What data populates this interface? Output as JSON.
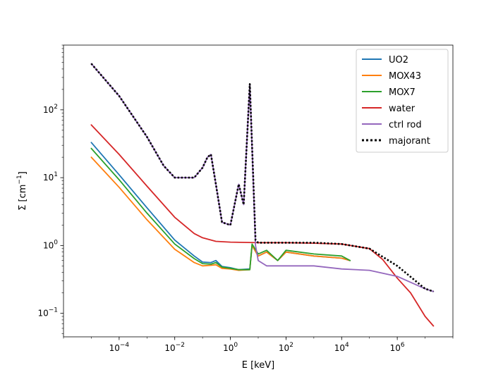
{
  "chart_data": {
    "type": "line",
    "title": "",
    "xlabel": "E [keV]",
    "ylabel_main": "Σ [cm",
    "ylabel_exp": "−1",
    "ylabel_close": "]",
    "xscale": "log",
    "yscale": "log",
    "xlim": [
      1e-06,
      100000000.0
    ],
    "ylim": [
      0.045,
      900
    ],
    "grid": false,
    "legend_position": "top-right",
    "x_ticks": [
      {
        "value": 0.0001,
        "base": "10",
        "exp": "−4"
      },
      {
        "value": 0.01,
        "base": "10",
        "exp": "−2"
      },
      {
        "value": 1,
        "base": "10",
        "exp": "0"
      },
      {
        "value": 100.0,
        "base": "10",
        "exp": "2"
      },
      {
        "value": 10000.0,
        "base": "10",
        "exp": "4"
      },
      {
        "value": 1000000.0,
        "base": "10",
        "exp": "6"
      }
    ],
    "y_ticks": [
      {
        "value": 0.1,
        "base": "10",
        "exp": "−1"
      },
      {
        "value": 1,
        "base": "10",
        "exp": "0"
      },
      {
        "value": 10,
        "base": "10",
        "exp": "1"
      },
      {
        "value": 100,
        "base": "10",
        "exp": "2"
      }
    ],
    "series": [
      {
        "name": "UO2",
        "color": "#1f77b4",
        "style": "solid",
        "x": [
          1e-05,
          0.0001,
          0.001,
          0.01,
          0.05,
          0.1,
          0.2,
          0.3,
          0.5,
          1,
          2,
          5,
          6,
          10,
          20,
          50,
          100,
          1000.0,
          10000.0,
          20000.0
        ],
        "y": [
          33,
          11,
          3.6,
          1.2,
          0.7,
          0.57,
          0.56,
          0.6,
          0.49,
          0.47,
          0.44,
          0.45,
          1.0,
          0.7,
          0.8,
          0.6,
          0.8,
          0.7,
          0.65,
          0.6
        ]
      },
      {
        "name": "MOX43",
        "color": "#ff7f0e",
        "style": "solid",
        "x": [
          1e-05,
          0.0001,
          0.001,
          0.01,
          0.05,
          0.1,
          0.2,
          0.3,
          0.5,
          1,
          2,
          5,
          6,
          10,
          20,
          50,
          100,
          1000.0,
          10000.0,
          20000.0
        ],
        "y": [
          20,
          7.2,
          2.4,
          0.88,
          0.56,
          0.5,
          0.51,
          0.52,
          0.46,
          0.45,
          0.43,
          0.44,
          1.0,
          0.7,
          0.8,
          0.6,
          0.8,
          0.7,
          0.65,
          0.6
        ]
      },
      {
        "name": "MOX7",
        "color": "#2ca02c",
        "style": "solid",
        "x": [
          1e-05,
          0.0001,
          0.001,
          0.01,
          0.05,
          0.1,
          0.2,
          0.3,
          0.5,
          1,
          2,
          5,
          6,
          10,
          20,
          50,
          100,
          1000.0,
          10000.0,
          20000.0
        ],
        "y": [
          27,
          9.3,
          3.0,
          1.05,
          0.64,
          0.54,
          0.53,
          0.56,
          0.48,
          0.46,
          0.44,
          0.44,
          1.05,
          0.75,
          0.85,
          0.6,
          0.85,
          0.75,
          0.7,
          0.6
        ]
      },
      {
        "name": "water",
        "color": "#d62728",
        "style": "solid",
        "x": [
          1e-05,
          0.0001,
          0.001,
          0.01,
          0.05,
          0.1,
          0.3,
          1,
          10,
          100,
          1000.0,
          10000.0,
          100000.0,
          300000.0,
          1000000.0,
          3000000.0,
          10000000.0,
          20000000.0
        ],
        "y": [
          60,
          22,
          7.5,
          2.6,
          1.5,
          1.3,
          1.15,
          1.12,
          1.1,
          1.1,
          1.08,
          1.05,
          0.9,
          0.62,
          0.33,
          0.2,
          0.09,
          0.065
        ]
      },
      {
        "name": "ctrl rod",
        "color": "#9467bd",
        "style": "solid",
        "x": [
          1e-05,
          0.0001,
          0.001,
          0.004,
          0.01,
          0.05,
          0.1,
          0.15,
          0.2,
          0.3,
          0.5,
          1,
          2,
          3,
          5,
          8,
          10,
          20,
          50,
          100,
          1000.0,
          10000.0,
          100000.0,
          1000000.0,
          10000000.0,
          20000000.0
        ],
        "y": [
          480,
          160,
          40,
          15,
          10,
          10,
          14,
          20,
          22,
          8,
          2.2,
          2.0,
          8,
          4,
          240,
          1.0,
          0.6,
          0.5,
          0.5,
          0.5,
          0.5,
          0.45,
          0.43,
          0.35,
          0.23,
          0.21
        ]
      },
      {
        "name": "majorant",
        "color": "#000000",
        "style": "dotted",
        "x": [
          1e-05,
          0.0001,
          0.001,
          0.004,
          0.01,
          0.05,
          0.1,
          0.15,
          0.2,
          0.3,
          0.5,
          1,
          2,
          3,
          5,
          8,
          10,
          20,
          50,
          100,
          1000.0,
          10000.0,
          100000.0,
          1000000.0,
          10000000.0,
          20000000.0
        ],
        "y": [
          480,
          160,
          40,
          15,
          10,
          10,
          14,
          20,
          22,
          8,
          2.2,
          2.0,
          8,
          4,
          240,
          1.2,
          1.1,
          1.1,
          1.1,
          1.1,
          1.1,
          1.05,
          0.9,
          0.5,
          0.23,
          0.21
        ]
      }
    ]
  }
}
